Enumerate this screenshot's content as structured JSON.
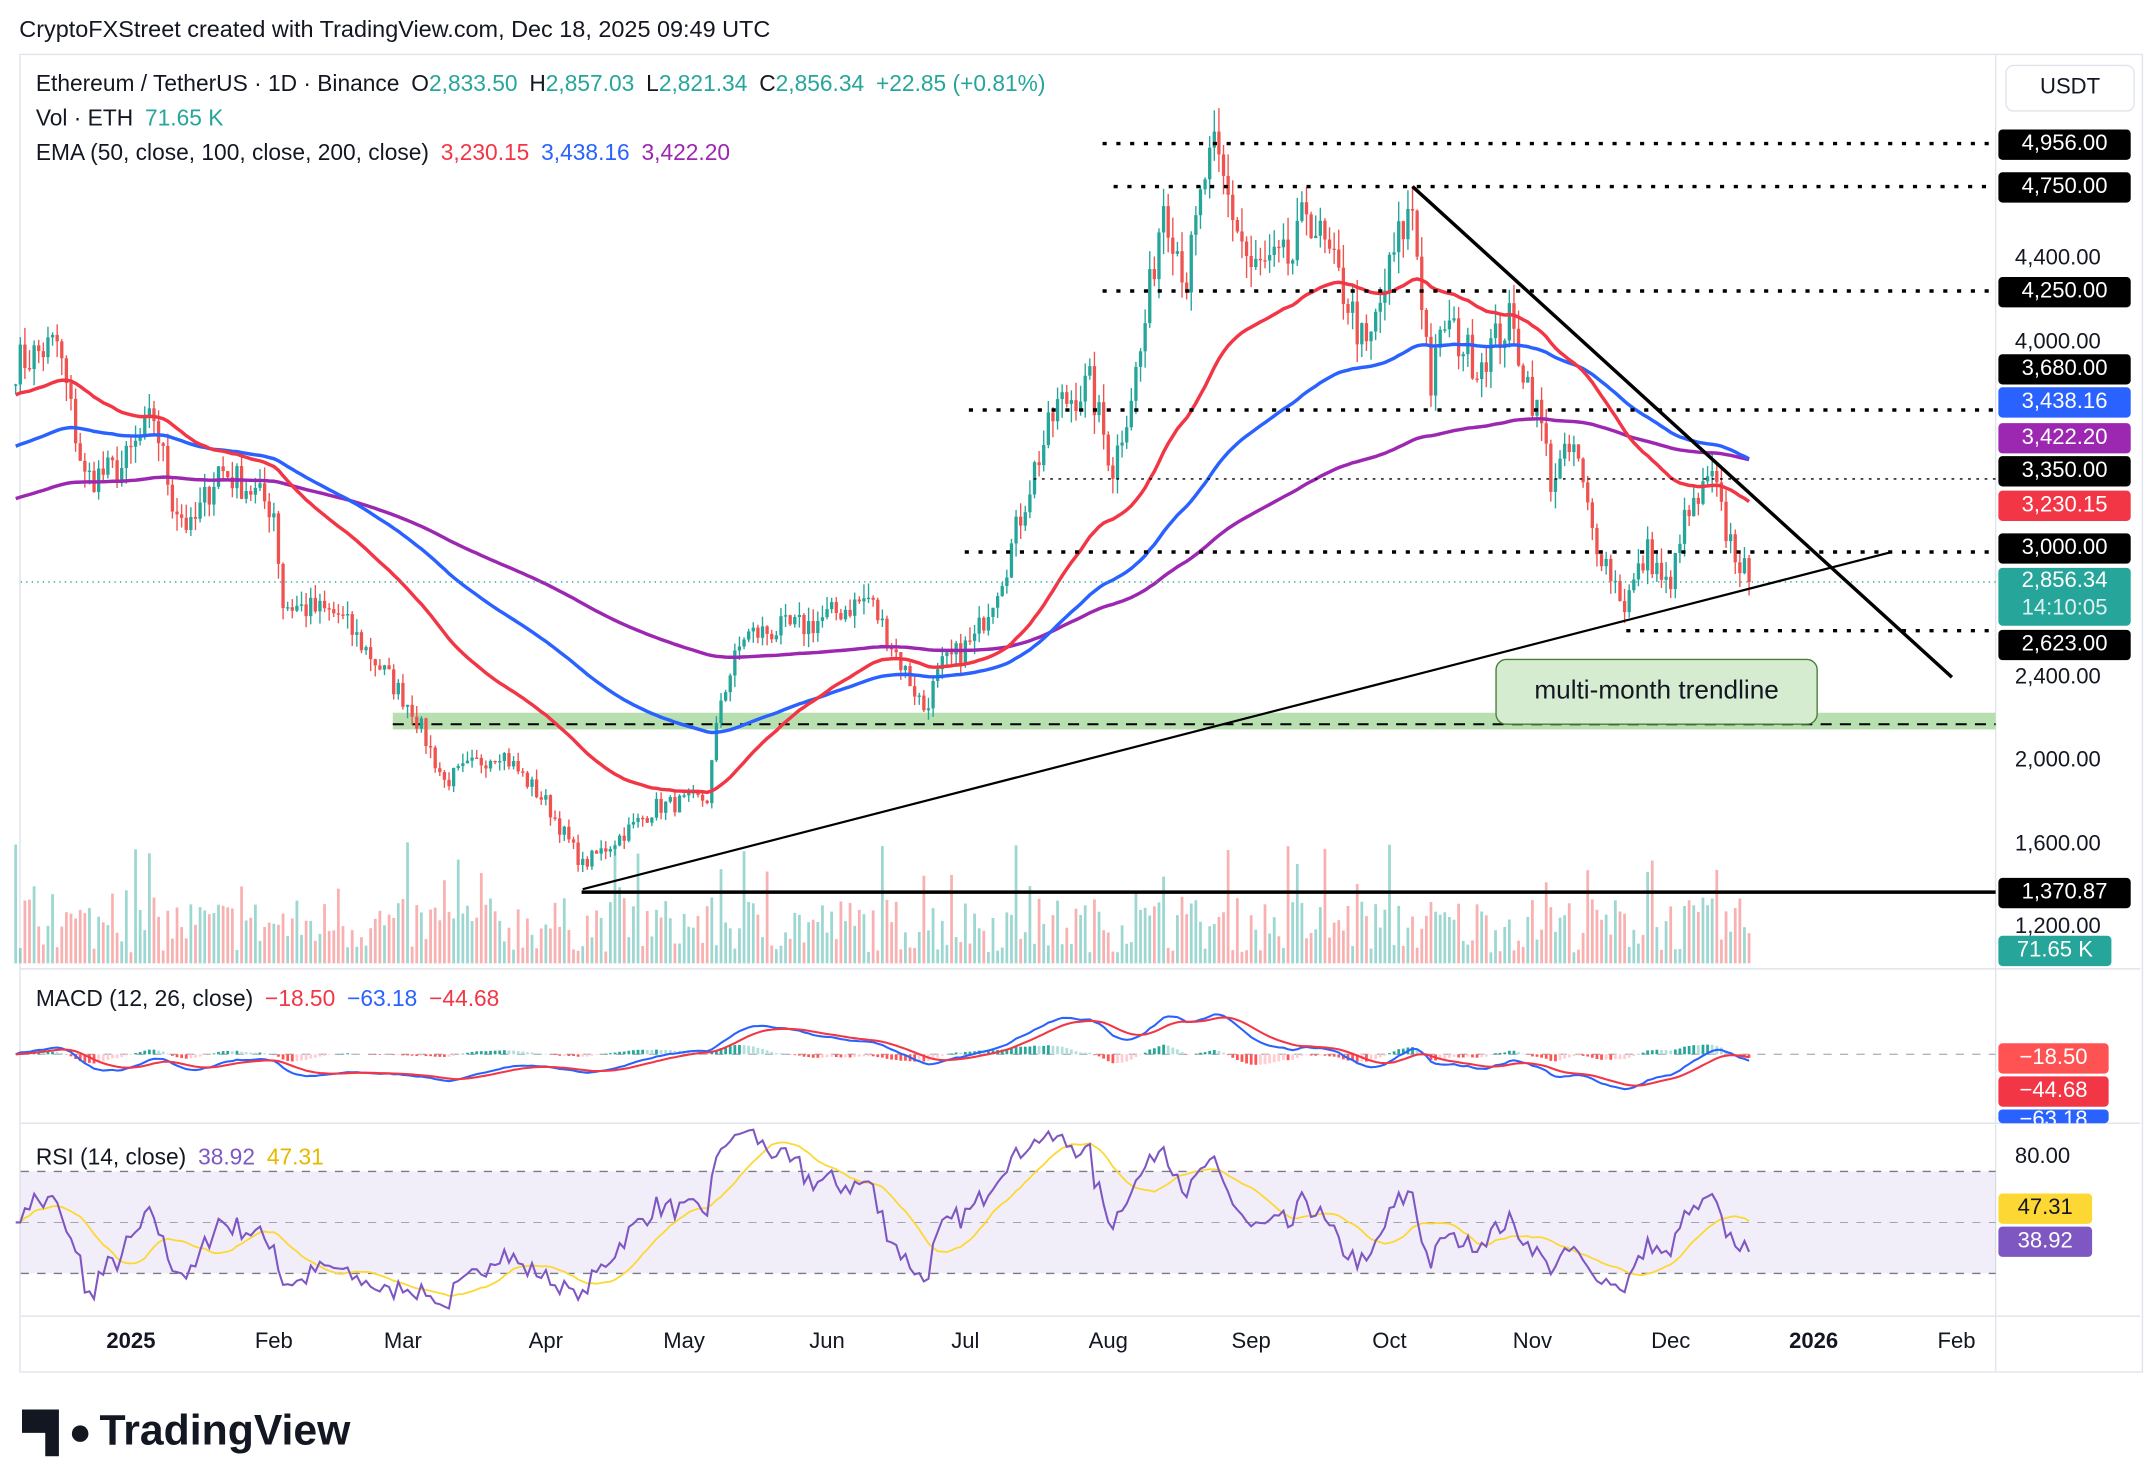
{
  "credit": "CryptoFXStreet created with TradingView.com, Dec 18, 2025 09:49 UTC",
  "legend": {
    "symbol": "Ethereum / TetherUS · 1D · Binance",
    "o_label": "O",
    "o": "2,833.50",
    "h_label": "H",
    "h": "2,857.03",
    "l_label": "L",
    "l": "2,821.34",
    "c_label": "C",
    "c": "2,856.34",
    "change": "+22.85 (+0.81%)",
    "vol_label": "Vol · ETH",
    "vol": "71.65 K",
    "ema_label": "EMA (50, close, 100, close, 200, close)",
    "ema50": "3,230.15",
    "ema100": "3,438.16",
    "ema200": "3,422.20",
    "macd_label": "MACD (12, 26, close)",
    "macd_hist": "−18.50",
    "macd_line": "−63.18",
    "macd_signal": "−44.68",
    "rsi_label": "RSI (14, close)",
    "rsi": "38.92",
    "rsi_ma": "47.31"
  },
  "currency": "USDT",
  "price_axis": [
    "4,400.00",
    "4,000.00",
    "2,400.00",
    "2,000.00",
    "1,600.00",
    "1,200.00"
  ],
  "price_tags": {
    "l4956": "4,956.00",
    "l4750": "4,750.00",
    "l4250": "4,250.00",
    "l3680": "3,680.00",
    "ema100": "3,438.16",
    "ema200": "3,422.20",
    "l3350": "3,350.00",
    "ema50": "3,230.15",
    "l3000": "3,000.00",
    "last": "2,856.34",
    "countdown": "14:10:05",
    "l2623": "2,623.00",
    "l1370": "1,370.87",
    "vol": "71.65 K"
  },
  "macd_tags": {
    "hist": "−18.50",
    "signal": "−44.68",
    "macd": "−63.18"
  },
  "rsi_axis": "80.00",
  "rsi_tags": {
    "ma": "47.31",
    "rsi": "38.92"
  },
  "time_axis": [
    {
      "label": "2025",
      "date": "2025-01-01",
      "bold": true
    },
    {
      "label": "Feb",
      "date": "2025-02-01"
    },
    {
      "label": "Mar",
      "date": "2025-03-01"
    },
    {
      "label": "Apr",
      "date": "2025-04-01"
    },
    {
      "label": "May",
      "date": "2025-05-01"
    },
    {
      "label": "Jun",
      "date": "2025-06-01"
    },
    {
      "label": "Jul",
      "date": "2025-07-01"
    },
    {
      "label": "Aug",
      "date": "2025-08-01"
    },
    {
      "label": "Sep",
      "date": "2025-09-01"
    },
    {
      "label": "Oct",
      "date": "2025-10-01"
    },
    {
      "label": "Nov",
      "date": "2025-11-01"
    },
    {
      "label": "Dec",
      "date": "2025-12-01"
    },
    {
      "label": "2026",
      "date": "2026-01-01",
      "bold": true
    },
    {
      "label": "Feb",
      "date": "2026-02-01"
    }
  ],
  "annotation": "multi-month trendline",
  "logo": "TradingView",
  "colors": {
    "up": "#26a69a",
    "down": "#ef5350",
    "ema50": "#f23645",
    "ema100": "#2962ff",
    "ema200": "#9c27b0",
    "rsi": "#7e57c2",
    "rsi_ma": "#fdd835",
    "zone": "#b7dfb0"
  },
  "chart_data": {
    "type": "candlestick",
    "scale": "linear",
    "ylim": [
      1150,
      5000
    ],
    "close_path": [
      [
        "2024-12-07",
        3900
      ],
      [
        "2024-12-16",
        4000
      ],
      [
        "2024-12-22",
        3350
      ],
      [
        "2024-12-30",
        3400
      ],
      [
        "2025-01-06",
        3650
      ],
      [
        "2025-01-10",
        3250
      ],
      [
        "2025-01-14",
        3100
      ],
      [
        "2025-01-20",
        3400
      ],
      [
        "2025-01-27",
        3300
      ],
      [
        "2025-02-01",
        3200
      ],
      [
        "2025-02-03",
        2750
      ],
      [
        "2025-02-15",
        2700
      ],
      [
        "2025-02-24",
        2450
      ],
      [
        "2025-03-03",
        2250
      ],
      [
        "2025-03-10",
        1900
      ],
      [
        "2025-03-22",
        2050
      ],
      [
        "2025-04-01",
        1800
      ],
      [
        "2025-04-09",
        1500
      ],
      [
        "2025-04-15",
        1600
      ],
      [
        "2025-04-25",
        1780
      ],
      [
        "2025-05-06",
        1820
      ],
      [
        "2025-05-09",
        2300
      ],
      [
        "2025-05-14",
        2600
      ],
      [
        "2025-05-28",
        2650
      ],
      [
        "2025-06-10",
        2780
      ],
      [
        "2025-06-22",
        2250
      ],
      [
        "2025-06-26",
        2450
      ],
      [
        "2025-07-03",
        2580
      ],
      [
        "2025-07-10",
        2950
      ],
      [
        "2025-07-16",
        3400
      ],
      [
        "2025-07-21",
        3700
      ],
      [
        "2025-07-28",
        3800
      ],
      [
        "2025-08-02",
        3400
      ],
      [
        "2025-08-08",
        3950
      ],
      [
        "2025-08-13",
        4700
      ],
      [
        "2025-08-18",
        4300
      ],
      [
        "2025-08-22",
        4800
      ],
      [
        "2025-08-24",
        4900
      ],
      [
        "2025-09-01",
        4350
      ],
      [
        "2025-09-10",
        4400
      ],
      [
        "2025-09-13",
        4650
      ],
      [
        "2025-09-22",
        4200
      ],
      [
        "2025-09-26",
        3950
      ],
      [
        "2025-10-03",
        4500
      ],
      [
        "2025-10-06",
        4650
      ],
      [
        "2025-10-10",
        3800
      ],
      [
        "2025-10-13",
        4100
      ],
      [
        "2025-10-20",
        3900
      ],
      [
        "2025-10-27",
        4100
      ],
      [
        "2025-11-03",
        3600
      ],
      [
        "2025-11-05",
        3350
      ],
      [
        "2025-11-10",
        3500
      ],
      [
        "2025-11-14",
        3100
      ],
      [
        "2025-11-21",
        2750
      ],
      [
        "2025-11-26",
        3000
      ],
      [
        "2025-12-01",
        2800
      ],
      [
        "2025-12-03",
        3100
      ],
      [
        "2025-12-10",
        3350
      ],
      [
        "2025-12-13",
        3100
      ],
      [
        "2025-12-18",
        2856.34
      ]
    ],
    "levels": [
      4956,
      4750,
      4250,
      3680,
      3350,
      3000,
      2623,
      1370.87
    ],
    "support_zone": [
      2150,
      2230
    ],
    "trendlines": [
      {
        "from": [
          "2025-04-09",
          1385
        ],
        "to": [
          "2026-01-18",
          3000
        ]
      },
      {
        "from": [
          "2025-10-06",
          4750
        ],
        "to": [
          "2026-01-31",
          2400
        ]
      }
    ],
    "ema_last": {
      "ema50": 3230.15,
      "ema100": 3438.16,
      "ema200": 3422.2
    },
    "volume_last": 71650,
    "macd_last": {
      "macd": -63.18,
      "signal": -44.68,
      "hist": -18.5
    },
    "rsi_last": {
      "rsi": 38.92,
      "ma": 47.31
    },
    "rsi_bands": [
      30,
      70
    ]
  }
}
